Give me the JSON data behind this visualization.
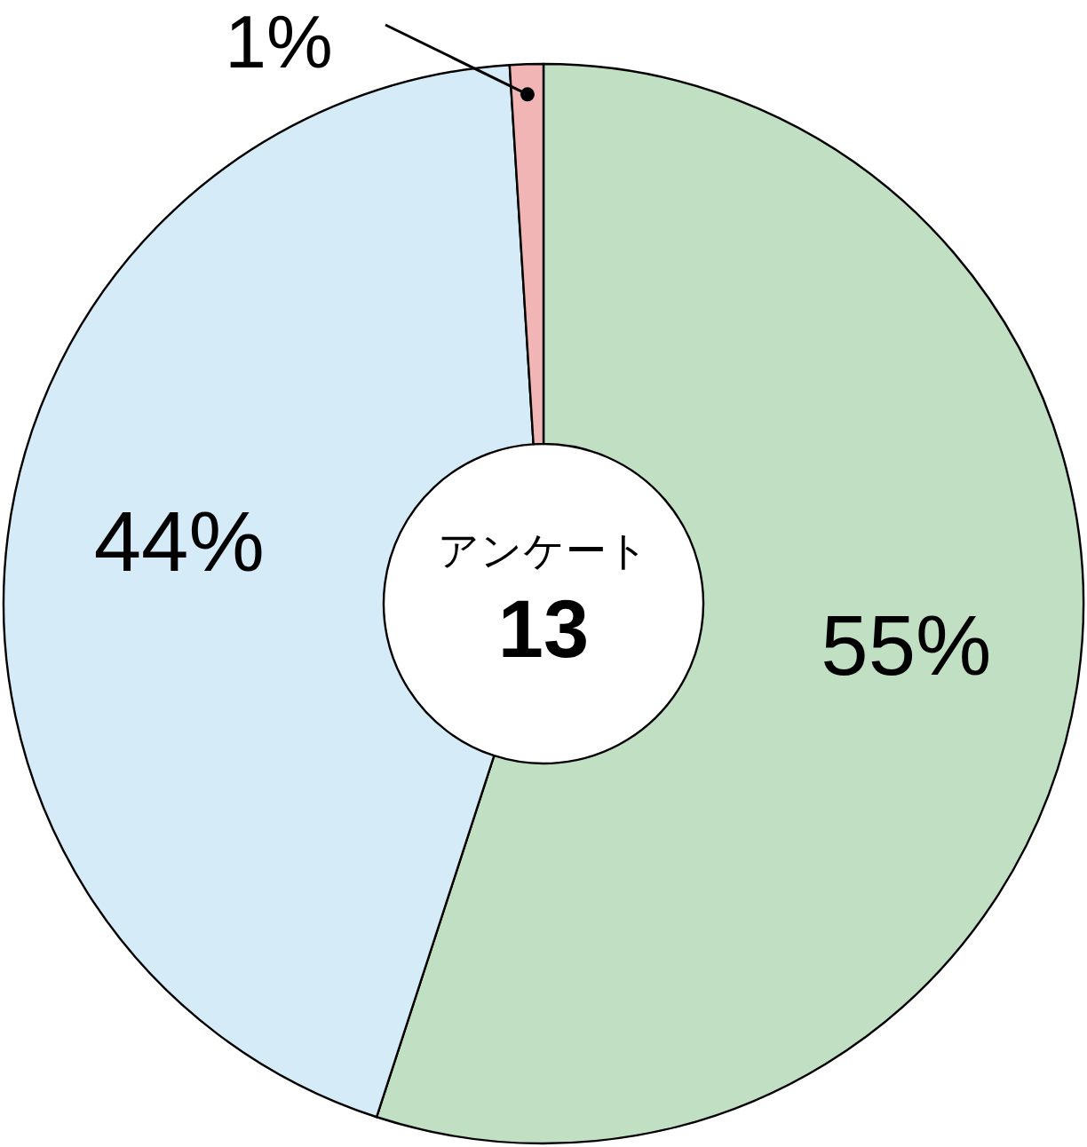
{
  "chart_data": {
    "type": "donut",
    "title": "アンケート",
    "subtitle": "13",
    "categories": [
      null,
      null,
      null
    ],
    "values": [
      55,
      44,
      1
    ],
    "colors": [
      "#c0dfc3",
      "#d5ebf8",
      "#f2b5b5"
    ],
    "value_labels": [
      "55%",
      "44%",
      "1%"
    ]
  }
}
